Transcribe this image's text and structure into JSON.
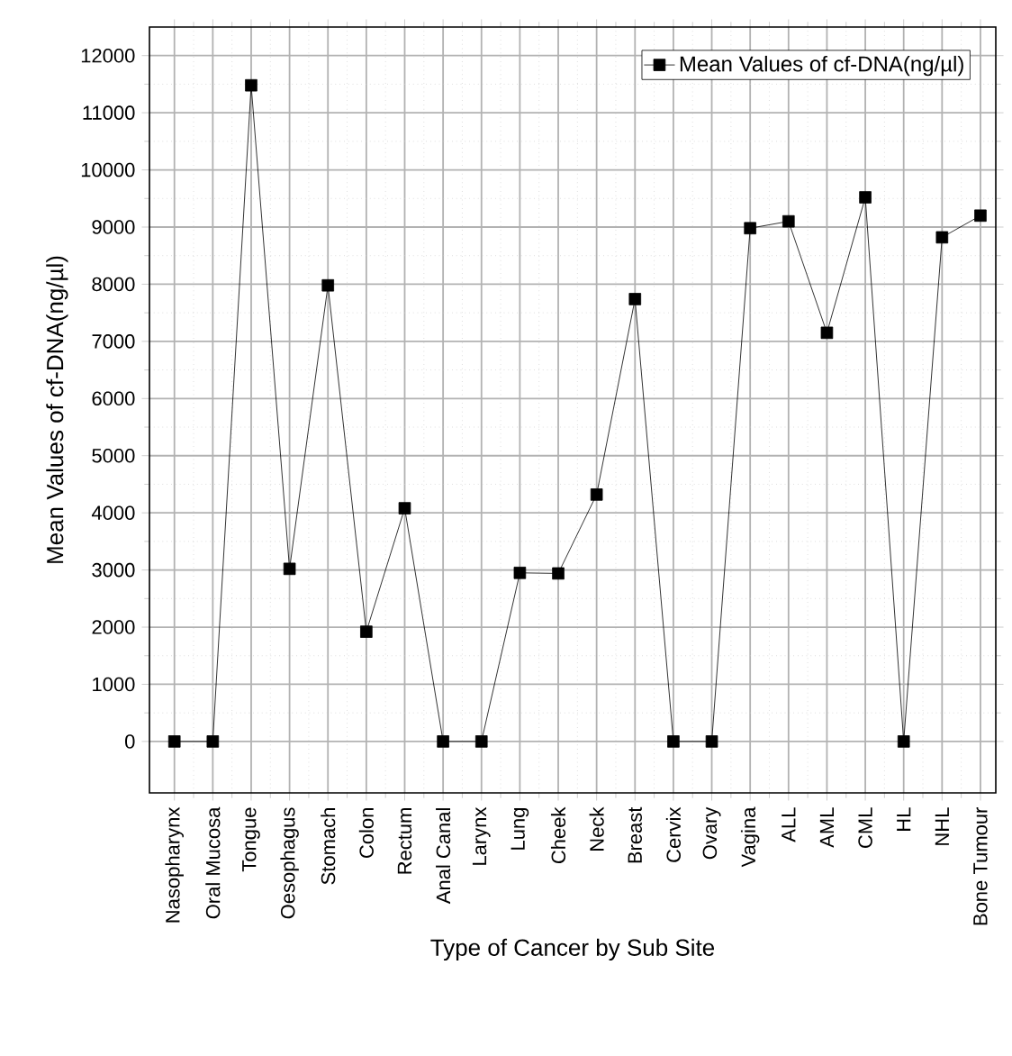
{
  "chart_data": {
    "type": "line",
    "xlabel": "Type of Cancer by Sub Site",
    "ylabel": "Mean Values of cf-DNA(ng/µl)",
    "categories": [
      "Nasopharynx",
      "Oral Mucosa",
      "Tongue",
      "Oesophagus",
      "Stomach",
      "Colon",
      "Rectum",
      "Anal Canal",
      "Larynx",
      "Lung",
      "Cheek",
      "Neck",
      "Breast",
      "Cervix",
      "Ovary",
      "Vagina",
      "ALL",
      "AML",
      "CML",
      "HL",
      "NHL",
      "Bone Tumour"
    ],
    "series": [
      {
        "name": "Mean Values of cf-DNA(ng/µl)",
        "color": "#000000",
        "values": [
          0,
          0,
          11480,
          3020,
          7980,
          1920,
          4080,
          0,
          0,
          2950,
          2940,
          4320,
          7740,
          0,
          0,
          8980,
          9100,
          7150,
          9520,
          0,
          8820,
          9200
        ]
      }
    ],
    "ylim": [
      -900,
      12500
    ],
    "yticks": [
      0,
      1000,
      2000,
      3000,
      4000,
      5000,
      6000,
      7000,
      8000,
      9000,
      10000,
      11000,
      12000
    ],
    "grid": true,
    "legend": "top right",
    "marker": "square",
    "line_style": "solid"
  }
}
